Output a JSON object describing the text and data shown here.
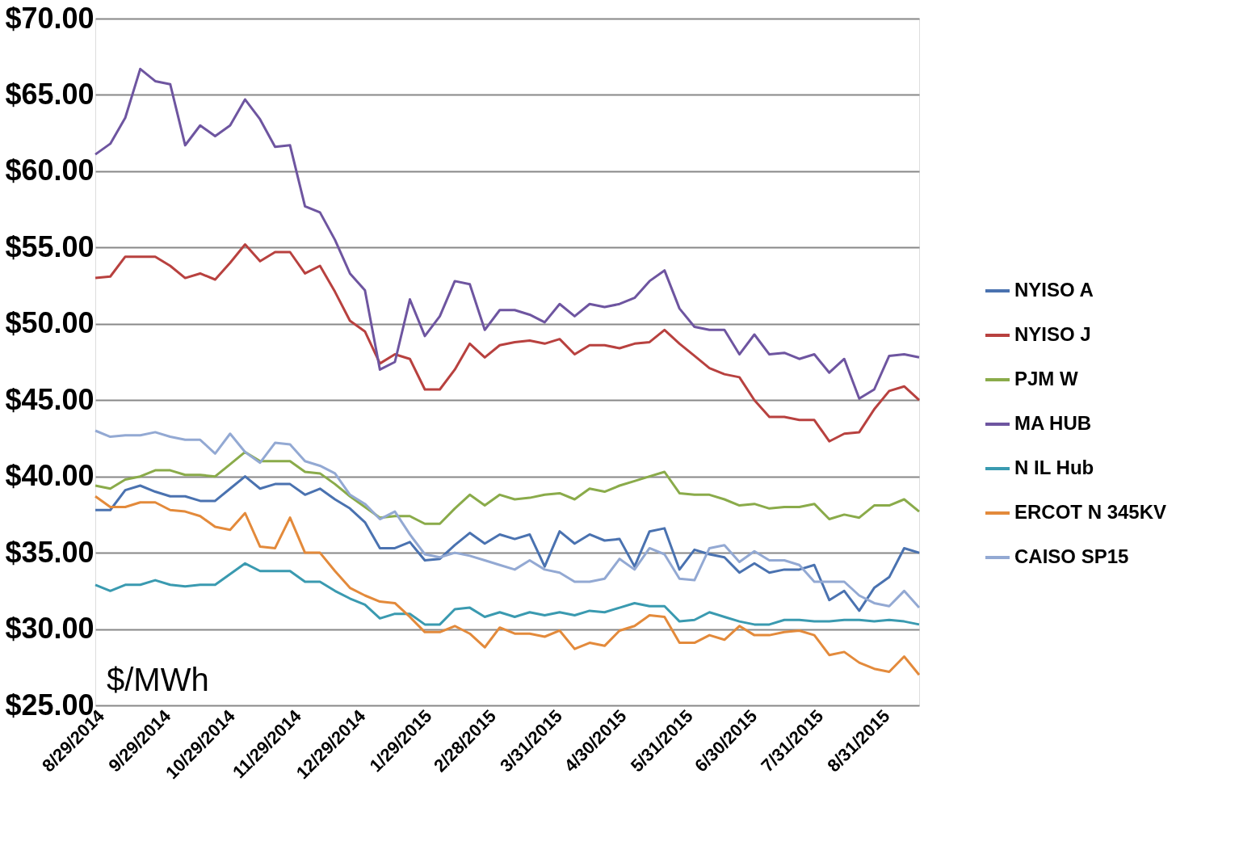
{
  "chart_data": {
    "type": "line",
    "x": [
      "2014-08-29",
      "2014-09-05",
      "2014-09-12",
      "2014-09-19",
      "2014-09-26",
      "2014-10-03",
      "2014-10-10",
      "2014-10-17",
      "2014-10-24",
      "2014-10-31",
      "2014-11-07",
      "2014-11-14",
      "2014-11-21",
      "2014-11-28",
      "2014-12-05",
      "2014-12-12",
      "2014-12-19",
      "2014-12-26",
      "2015-01-02",
      "2015-01-09",
      "2015-01-16",
      "2015-01-23",
      "2015-01-30",
      "2015-02-06",
      "2015-02-13",
      "2015-02-20",
      "2015-02-27",
      "2015-03-06",
      "2015-03-13",
      "2015-03-20",
      "2015-03-27",
      "2015-04-03",
      "2015-04-10",
      "2015-04-17",
      "2015-04-24",
      "2015-05-01",
      "2015-05-08",
      "2015-05-15",
      "2015-05-22",
      "2015-05-29",
      "2015-06-05",
      "2015-06-12",
      "2015-06-19",
      "2015-06-26",
      "2015-07-03",
      "2015-07-10",
      "2015-07-17",
      "2015-07-24",
      "2015-07-31",
      "2015-08-07",
      "2015-08-14",
      "2015-08-21",
      "2015-08-28",
      "2015-09-04",
      "2015-09-11",
      "2015-09-18"
    ],
    "series": [
      {
        "name": "NYISO A",
        "color": "#4a72b0",
        "values": [
          37.8,
          37.8,
          39.1,
          39.4,
          39.0,
          38.7,
          38.7,
          38.4,
          38.4,
          39.2,
          40.0,
          39.2,
          39.5,
          39.5,
          38.8,
          39.2,
          38.5,
          37.9,
          37.0,
          35.3,
          35.3,
          35.7,
          34.5,
          34.6,
          35.5,
          36.3,
          35.6,
          36.2,
          35.9,
          36.2,
          34.1,
          36.4,
          35.6,
          36.2,
          35.8,
          35.9,
          34.1,
          36.4,
          36.6,
          33.9,
          35.2,
          34.9,
          34.7,
          33.7,
          34.3,
          33.7,
          33.9,
          33.9,
          34.2,
          31.9,
          32.5,
          31.2,
          32.7,
          33.4,
          35.3,
          35.0
        ]
      },
      {
        "name": "NYISO J",
        "color": "#b8413f",
        "values": [
          53.0,
          53.1,
          54.4,
          54.4,
          54.4,
          53.8,
          53.0,
          53.3,
          52.9,
          54.0,
          55.2,
          54.1,
          54.7,
          54.7,
          53.3,
          53.8,
          52.1,
          50.2,
          49.5,
          47.4,
          48.0,
          47.7,
          45.7,
          45.7,
          47.0,
          48.7,
          47.8,
          48.6,
          48.8,
          48.9,
          48.7,
          49.0,
          48.0,
          48.6,
          48.6,
          48.4,
          48.7,
          48.8,
          49.6,
          48.7,
          47.9,
          47.1,
          46.7,
          46.5,
          45.0,
          43.9,
          43.9,
          43.7,
          43.7,
          42.3,
          42.8,
          42.9,
          44.4,
          45.6,
          45.9,
          45.0
        ]
      },
      {
        "name": "PJM W",
        "color": "#8aab4a",
        "values": [
          39.4,
          39.2,
          39.8,
          40.0,
          40.4,
          40.4,
          40.1,
          40.1,
          40.0,
          40.8,
          41.6,
          41.0,
          41.0,
          41.0,
          40.3,
          40.2,
          39.5,
          38.7,
          38.0,
          37.3,
          37.4,
          37.4,
          36.9,
          36.9,
          37.9,
          38.8,
          38.1,
          38.8,
          38.5,
          38.6,
          38.8,
          38.9,
          38.5,
          39.2,
          39.0,
          39.4,
          39.7,
          40.0,
          40.3,
          38.9,
          38.8,
          38.8,
          38.5,
          38.1,
          38.2,
          37.9,
          38.0,
          38.0,
          38.2,
          37.2,
          37.5,
          37.3,
          38.1,
          38.1,
          38.5,
          37.7
        ]
      },
      {
        "name": "MA HUB",
        "color": "#6e55a0",
        "values": [
          61.1,
          61.8,
          63.5,
          66.7,
          65.9,
          65.7,
          61.7,
          63.0,
          62.3,
          63.0,
          64.7,
          63.4,
          61.6,
          61.7,
          57.7,
          57.3,
          55.5,
          53.3,
          52.2,
          47.0,
          47.5,
          51.6,
          49.2,
          50.5,
          52.8,
          52.6,
          49.6,
          50.9,
          50.9,
          50.6,
          50.1,
          51.3,
          50.5,
          51.3,
          51.1,
          51.3,
          51.7,
          52.8,
          53.5,
          51.0,
          49.8,
          49.6,
          49.6,
          48.0,
          49.3,
          48.0,
          48.1,
          47.7,
          48.0,
          46.8,
          47.7,
          45.1,
          45.7,
          47.9,
          48.0,
          47.8
        ]
      },
      {
        "name": "N IL Hub",
        "color": "#3a9ab0",
        "values": [
          32.9,
          32.5,
          32.9,
          32.9,
          33.2,
          32.9,
          32.8,
          32.9,
          32.9,
          33.6,
          34.3,
          33.8,
          33.8,
          33.8,
          33.1,
          33.1,
          32.5,
          32.0,
          31.6,
          30.7,
          31.0,
          31.0,
          30.3,
          30.3,
          31.3,
          31.4,
          30.8,
          31.1,
          30.8,
          31.1,
          30.9,
          31.1,
          30.9,
          31.2,
          31.1,
          31.4,
          31.7,
          31.5,
          31.5,
          30.5,
          30.6,
          31.1,
          30.8,
          30.5,
          30.3,
          30.3,
          30.6,
          30.6,
          30.5,
          30.5,
          30.6,
          30.6,
          30.5,
          30.6,
          30.5,
          30.3
        ]
      },
      {
        "name": "ERCOT N 345KV",
        "color": "#e38a3b",
        "values": [
          38.7,
          38.0,
          38.0,
          38.3,
          38.3,
          37.8,
          37.7,
          37.4,
          36.7,
          36.5,
          37.6,
          35.4,
          35.3,
          37.3,
          35.0,
          35.0,
          33.8,
          32.7,
          32.2,
          31.8,
          31.7,
          30.8,
          29.8,
          29.8,
          30.2,
          29.7,
          28.8,
          30.1,
          29.7,
          29.7,
          29.5,
          29.9,
          28.7,
          29.1,
          28.9,
          29.9,
          30.2,
          30.9,
          30.8,
          29.1,
          29.1,
          29.6,
          29.3,
          30.2,
          29.6,
          29.6,
          29.8,
          29.9,
          29.6,
          28.3,
          28.5,
          27.8,
          27.4,
          27.2,
          28.2,
          27.0
        ]
      },
      {
        "name": "CAISO SP15",
        "color": "#93a9d3",
        "values": [
          43.0,
          42.6,
          42.7,
          42.7,
          42.9,
          42.6,
          42.4,
          42.4,
          41.5,
          42.8,
          41.6,
          40.9,
          42.2,
          42.1,
          41.0,
          40.7,
          40.2,
          38.8,
          38.2,
          37.2,
          37.7,
          36.2,
          34.9,
          34.7,
          35.0,
          34.8,
          34.5,
          34.2,
          33.9,
          34.5,
          33.9,
          33.7,
          33.1,
          33.1,
          33.3,
          34.6,
          33.9,
          35.3,
          34.9,
          33.3,
          33.2,
          35.3,
          35.5,
          34.4,
          35.1,
          34.5,
          34.5,
          34.2,
          33.1,
          33.1,
          33.1,
          32.2,
          31.7,
          31.5,
          32.5,
          31.4
        ]
      }
    ],
    "xlim": [
      "2014-08-29",
      "2015-09-18"
    ],
    "xticks": [
      {
        "value": "2014-08-29",
        "label": "8/29/2014"
      },
      {
        "value": "2014-09-29",
        "label": "9/29/2014"
      },
      {
        "value": "2014-10-29",
        "label": "10/29/2014"
      },
      {
        "value": "2014-11-29",
        "label": "11/29/2014"
      },
      {
        "value": "2014-12-29",
        "label": "12/29/2014"
      },
      {
        "value": "2015-01-29",
        "label": "1/29/2015"
      },
      {
        "value": "2015-02-28",
        "label": "2/28/2015"
      },
      {
        "value": "2015-03-31",
        "label": "3/31/2015"
      },
      {
        "value": "2015-04-30",
        "label": "4/30/2015"
      },
      {
        "value": "2015-05-31",
        "label": "5/31/2015"
      },
      {
        "value": "2015-06-30",
        "label": "6/30/2015"
      },
      {
        "value": "2015-07-31",
        "label": "7/31/2015"
      },
      {
        "value": "2015-08-31",
        "label": "8/31/2015"
      }
    ],
    "ylim": [
      25,
      70
    ],
    "yticks": [
      {
        "value": 25,
        "label": "$25.00"
      },
      {
        "value": 30,
        "label": "$30.00"
      },
      {
        "value": 35,
        "label": "$35.00"
      },
      {
        "value": 40,
        "label": "$40.00"
      },
      {
        "value": 45,
        "label": "$45.00"
      },
      {
        "value": 50,
        "label": "$50.00"
      },
      {
        "value": 55,
        "label": "$55.00"
      },
      {
        "value": 60,
        "label": "$60.00"
      },
      {
        "value": 65,
        "label": "$65.00"
      },
      {
        "value": 70,
        "label": "$70.00"
      }
    ],
    "grid": "y",
    "legend": "right",
    "marker": "none",
    "line_style": "solid",
    "annotations": [
      "$/MWh"
    ]
  }
}
